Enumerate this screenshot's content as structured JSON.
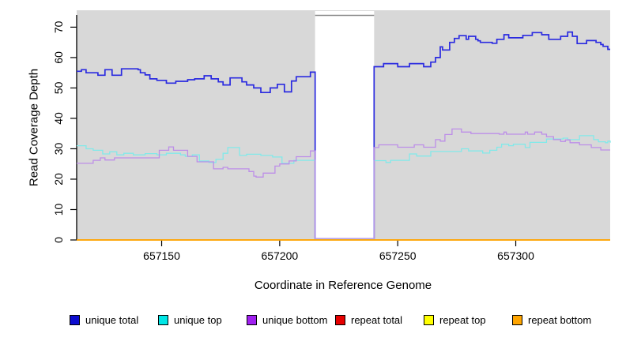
{
  "chart_data": {
    "type": "line",
    "title": "",
    "xlabel": "Coordinate in Reference Genome",
    "ylabel": "Read Coverage Depth",
    "xlim": [
      657114,
      657340
    ],
    "ylim": [
      0,
      74
    ],
    "x_ticks": [
      657150,
      657200,
      657250,
      657300
    ],
    "y_ticks": [
      0,
      10,
      20,
      30,
      40,
      50,
      60,
      70
    ],
    "grid": false,
    "plot_bg": "#d8d8d8",
    "gap_region": {
      "x1": 657215,
      "x2": 657240,
      "fill": "#ffffff",
      "top_line_color": "#8a8a8a"
    },
    "baseline_color": "#ffa500",
    "legend_position": "bottom",
    "step_interpolation": true,
    "series": [
      {
        "name": "unique total",
        "color": "#2a2ae0",
        "legend_color": "#0d0dd0",
        "points": [
          [
            657114,
            55.5
          ],
          [
            657116,
            56
          ],
          [
            657118,
            55
          ],
          [
            657123,
            54.2
          ],
          [
            657126,
            56
          ],
          [
            657129,
            54.2
          ],
          [
            657133,
            56.3
          ],
          [
            657140,
            56
          ],
          [
            657141,
            55
          ],
          [
            657143,
            54.3
          ],
          [
            657145,
            53
          ],
          [
            657148,
            52.5
          ],
          [
            657152,
            51.6
          ],
          [
            657156,
            52.2
          ],
          [
            657161,
            52.7
          ],
          [
            657164,
            53
          ],
          [
            657168,
            54
          ],
          [
            657171,
            53
          ],
          [
            657174,
            52
          ],
          [
            657176,
            51
          ],
          [
            657179,
            53.3
          ],
          [
            657184,
            52
          ],
          [
            657186,
            51
          ],
          [
            657189,
            50
          ],
          [
            657192,
            48.5
          ],
          [
            657196,
            50
          ],
          [
            657199,
            51.2
          ],
          [
            657202,
            48.7
          ],
          [
            657205,
            52.3
          ],
          [
            657207,
            53.7
          ],
          [
            657213,
            55.2
          ],
          [
            657215,
            0.4
          ],
          [
            657240,
            57
          ],
          [
            657244,
            58
          ],
          [
            657250,
            57
          ],
          [
            657255,
            58
          ],
          [
            657261,
            57
          ],
          [
            657264,
            58.5
          ],
          [
            657266,
            60
          ],
          [
            657268,
            63.5
          ],
          [
            657269,
            62.5
          ],
          [
            657272,
            65
          ],
          [
            657274,
            66.3
          ],
          [
            657276,
            67.2
          ],
          [
            657279,
            66
          ],
          [
            657280,
            67
          ],
          [
            657283,
            66
          ],
          [
            657284,
            65.5
          ],
          [
            657285,
            65
          ],
          [
            657290,
            64.7
          ],
          [
            657292,
            66
          ],
          [
            657295,
            67.5
          ],
          [
            657297,
            66.5
          ],
          [
            657303,
            67.3
          ],
          [
            657307,
            68.2
          ],
          [
            657311,
            67.5
          ],
          [
            657314,
            66
          ],
          [
            657319,
            67
          ],
          [
            657322,
            68.4
          ],
          [
            657324,
            67
          ],
          [
            657326,
            64.6
          ],
          [
            657330,
            65.6
          ],
          [
            657334,
            65
          ],
          [
            657336,
            64.3
          ],
          [
            657337,
            63.7
          ],
          [
            657339,
            62.7
          ]
        ]
      },
      {
        "name": "unique top",
        "color": "#82e9e9",
        "legend_color": "#00e6e6",
        "points": [
          [
            657114,
            31
          ],
          [
            657118,
            30
          ],
          [
            657121,
            29.5
          ],
          [
            657125,
            28.3
          ],
          [
            657128,
            29
          ],
          [
            657131,
            28
          ],
          [
            657134,
            28.5
          ],
          [
            657138,
            28
          ],
          [
            657143,
            28.4
          ],
          [
            657148,
            28
          ],
          [
            657152,
            28.5
          ],
          [
            657158,
            28
          ],
          [
            657160,
            27.5
          ],
          [
            657163,
            28
          ],
          [
            657166,
            26
          ],
          [
            657170,
            25.5
          ],
          [
            657173,
            26.5
          ],
          [
            657176,
            28.5
          ],
          [
            657178,
            30.4
          ],
          [
            657183,
            27.8
          ],
          [
            657186,
            28.2
          ],
          [
            657192,
            27.8
          ],
          [
            657197,
            27.3
          ],
          [
            657201,
            25.2
          ],
          [
            657206,
            26.2
          ],
          [
            657215,
            0.3
          ],
          [
            657240,
            26.1
          ],
          [
            657245,
            25.5
          ],
          [
            657247,
            26.2
          ],
          [
            657255,
            28.3
          ],
          [
            657258,
            27.6
          ],
          [
            657264,
            29.1
          ],
          [
            657277,
            30
          ],
          [
            657280,
            29.3
          ],
          [
            657286,
            28.6
          ],
          [
            657289,
            29.5
          ],
          [
            657292,
            30.5
          ],
          [
            657294,
            31.5
          ],
          [
            657297,
            31
          ],
          [
            657299,
            31.5
          ],
          [
            657304,
            30.4
          ],
          [
            657306,
            32.1
          ],
          [
            657313,
            33.2
          ],
          [
            657320,
            33.5
          ],
          [
            657322,
            33
          ],
          [
            657327,
            34.3
          ],
          [
            657333,
            33
          ],
          [
            657335,
            32.3
          ],
          [
            657338,
            32
          ],
          [
            657339,
            32.5
          ],
          [
            657340,
            32
          ]
        ]
      },
      {
        "name": "unique bottom",
        "color": "#bd8ee8",
        "legend_color": "#a020f0",
        "points": [
          [
            657114,
            25.2
          ],
          [
            657121,
            26.2
          ],
          [
            657124,
            27
          ],
          [
            657126,
            26.3
          ],
          [
            657130,
            27
          ],
          [
            657149,
            29.5
          ],
          [
            657153,
            30.6
          ],
          [
            657155,
            29.5
          ],
          [
            657161,
            27.5
          ],
          [
            657165,
            25.7
          ],
          [
            657172,
            23.4
          ],
          [
            657176,
            23.9
          ],
          [
            657178,
            23.4
          ],
          [
            657187,
            22.5
          ],
          [
            657189,
            21
          ],
          [
            657190,
            20.7
          ],
          [
            657193,
            22
          ],
          [
            657198,
            24.3
          ],
          [
            657200,
            25
          ],
          [
            657204,
            26
          ],
          [
            657207,
            27.4
          ],
          [
            657213,
            29.3
          ],
          [
            657215,
            0.5
          ],
          [
            657240,
            30.4
          ],
          [
            657242,
            31.3
          ],
          [
            657250,
            30.5
          ],
          [
            657257,
            31.3
          ],
          [
            657261,
            30.5
          ],
          [
            657266,
            33
          ],
          [
            657268,
            32.5
          ],
          [
            657270,
            34.7
          ],
          [
            657273,
            36.5
          ],
          [
            657277,
            35.5
          ],
          [
            657281,
            35
          ],
          [
            657293,
            34.8
          ],
          [
            657295,
            35.5
          ],
          [
            657296,
            34.8
          ],
          [
            657304,
            35.5
          ],
          [
            657305,
            34.8
          ],
          [
            657308,
            35.5
          ],
          [
            657311,
            34.8
          ],
          [
            657313,
            34
          ],
          [
            657316,
            33
          ],
          [
            657319,
            32.4
          ],
          [
            657321,
            32.9
          ],
          [
            657323,
            32
          ],
          [
            657327,
            31.3
          ],
          [
            657332,
            30.4
          ],
          [
            657336,
            29.6
          ]
        ]
      },
      {
        "name": "repeat total",
        "color": "#e60000",
        "legend_color": "#e60000",
        "points": [
          [
            657114,
            0
          ],
          [
            657340,
            0
          ]
        ]
      },
      {
        "name": "repeat top",
        "color": "#ffff00",
        "legend_color": "#ffff00",
        "points": [
          [
            657114,
            0
          ],
          [
            657340,
            0
          ]
        ]
      },
      {
        "name": "repeat bottom",
        "color": "#ffa500",
        "legend_color": "#ffa500",
        "points": [
          [
            657114,
            0
          ],
          [
            657340,
            0
          ]
        ]
      }
    ],
    "legend": [
      {
        "label": "unique total",
        "color": "#0d0dd0"
      },
      {
        "label": "unique top",
        "color": "#00e6e6"
      },
      {
        "label": "unique bottom",
        "color": "#a020f0"
      },
      {
        "label": "repeat total",
        "color": "#e60000"
      },
      {
        "label": "repeat top",
        "color": "#ffff00"
      },
      {
        "label": "repeat bottom",
        "color": "#ffa500"
      }
    ]
  }
}
